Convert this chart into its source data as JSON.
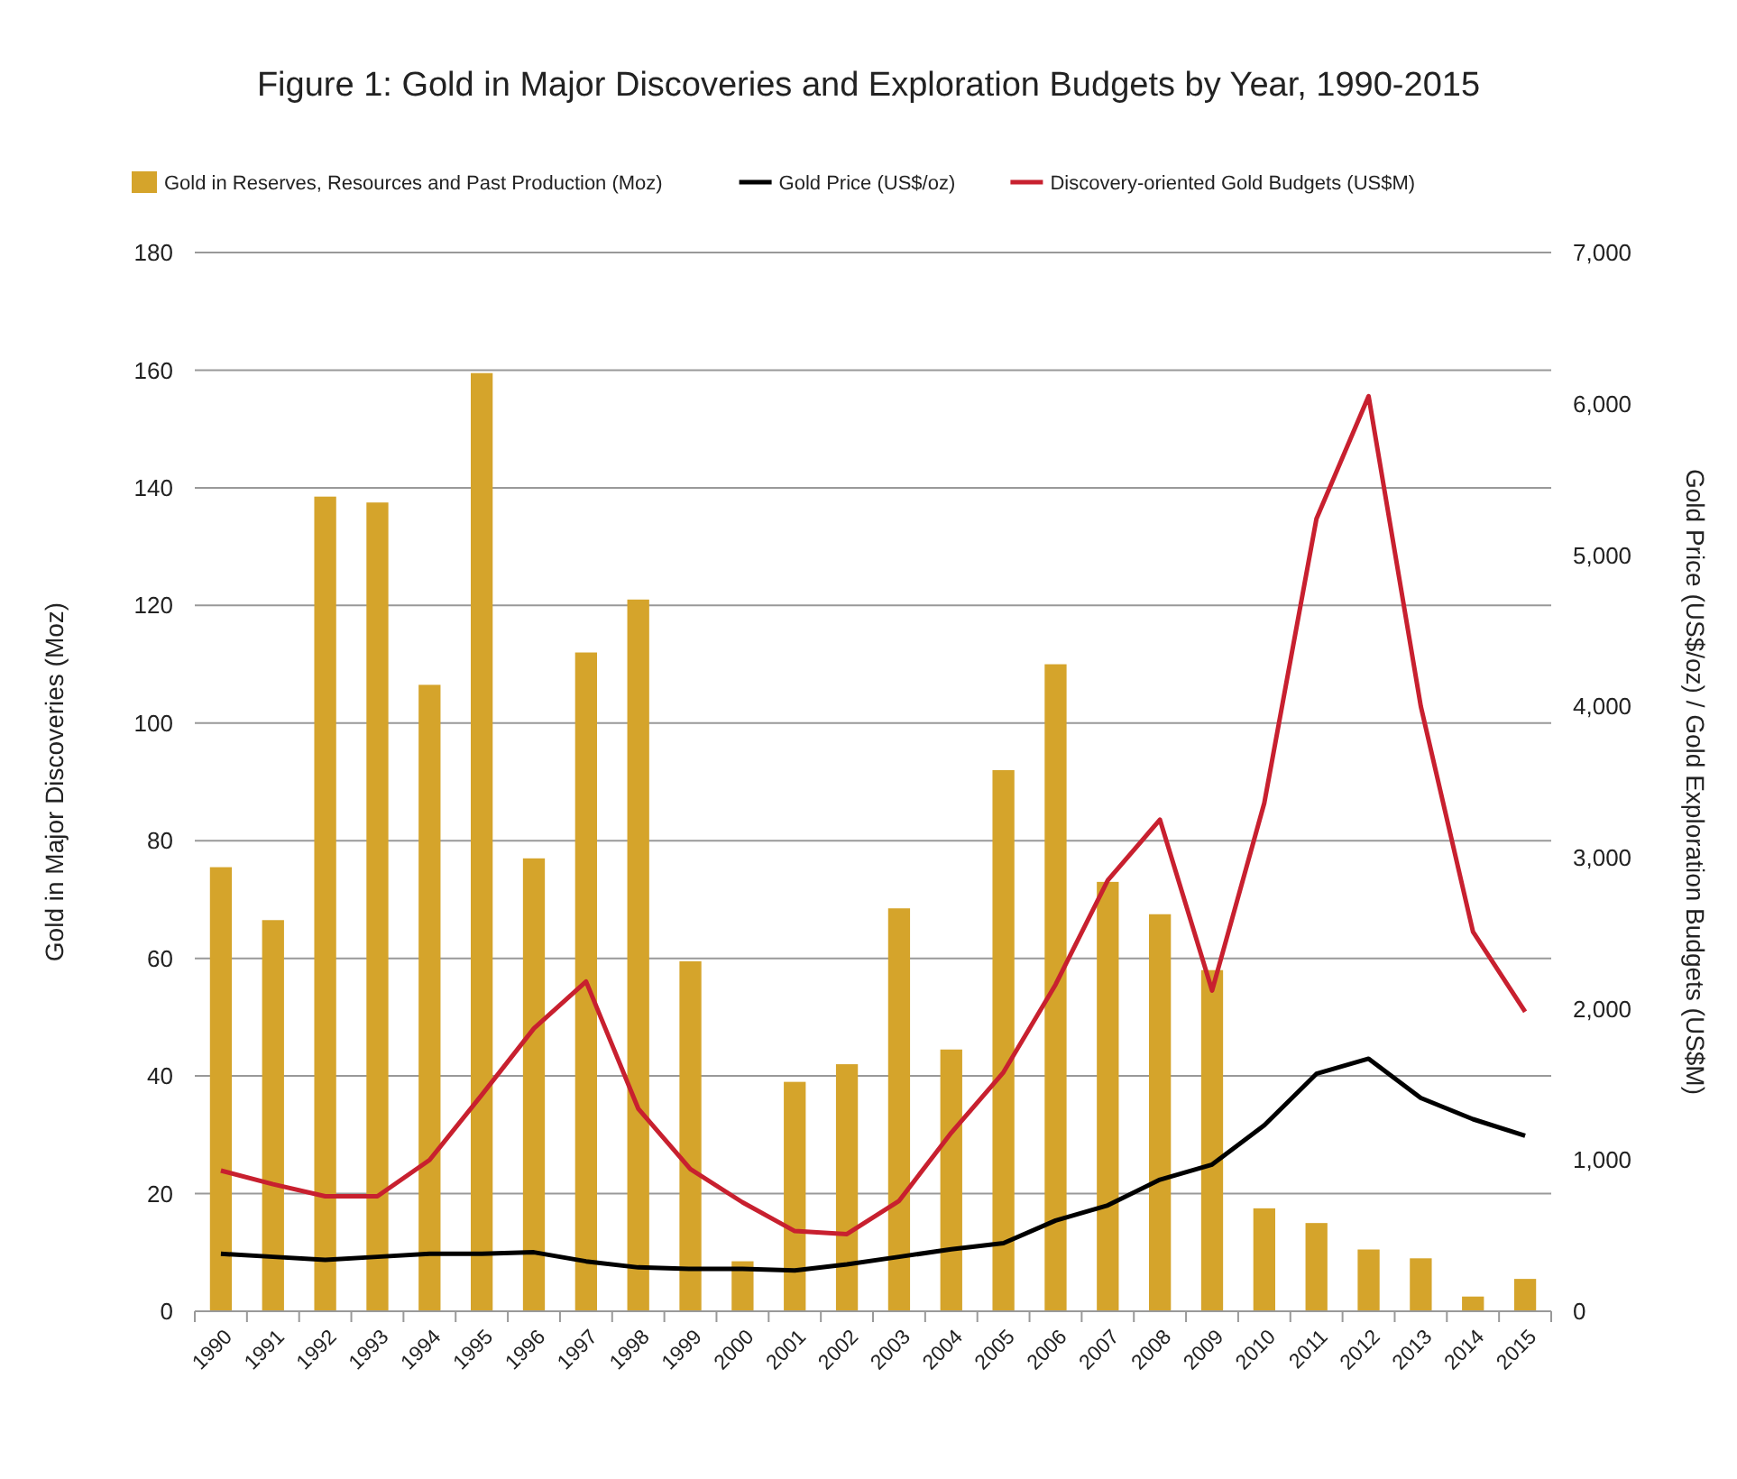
{
  "chart_data": {
    "type": "bar",
    "title": "Figure 1: Gold in Major Discoveries and Exploration Budgets by Year, 1990-2015",
    "ylabel": "Gold in Major Discoveries (Moz)",
    "y2label": "Gold Price (US$/oz) / Gold Exploration Budgets (US$M)",
    "categories": [
      "1990",
      "1991",
      "1992",
      "1993",
      "1994",
      "1995",
      "1996",
      "1997",
      "1998",
      "1999",
      "2000",
      "2001",
      "2002",
      "2003",
      "2004",
      "2005",
      "2006",
      "2007",
      "2008",
      "2009",
      "2010",
      "2011",
      "2012",
      "2013",
      "2014",
      "2015"
    ],
    "series": [
      {
        "name": "Gold in Reserves, Resources and Past Production (Moz)",
        "color": "#d5a42b",
        "values": [
          75.5,
          66.5,
          138.5,
          137.5,
          106.5,
          159.5,
          77,
          112,
          121,
          59.5,
          8.5,
          39,
          42,
          68.5,
          44.5,
          92,
          110,
          73,
          67.5,
          58,
          17.5,
          15,
          10.5,
          9,
          2.5,
          5.5
        ]
      },
      {
        "name": "Gold Price (US$/oz)",
        "type": "line",
        "axis": "y2",
        "color": "#000000",
        "values": [
          380,
          360,
          340,
          360,
          380,
          380,
          390,
          330,
          290,
          280,
          280,
          270,
          310,
          360,
          410,
          450,
          600,
          700,
          870,
          970,
          1230,
          1570,
          1670,
          1410,
          1270,
          1160
        ]
      },
      {
        "name": "Discovery-oriented Gold Budgets (US$M)",
        "type": "line",
        "axis": "y2",
        "color": "#c8202f",
        "values": [
          930,
          840,
          760,
          760,
          1000,
          1430,
          1870,
          2180,
          1340,
          940,
          720,
          530,
          510,
          730,
          1180,
          1580,
          2160,
          2850,
          3250,
          2120,
          3360,
          5240,
          6050,
          4000,
          2510,
          1980
        ]
      }
    ],
    "ylim": [
      0,
      180
    ],
    "yticks": [
      0,
      20,
      40,
      60,
      80,
      100,
      120,
      140,
      160,
      180
    ],
    "y2lim": [
      0,
      7000
    ],
    "y2ticks": [
      {
        "value": 0,
        "label": "0"
      },
      {
        "value": 1000,
        "label": "1,000"
      },
      {
        "value": 2000,
        "label": "2,000"
      },
      {
        "value": 3000,
        "label": "3,000"
      },
      {
        "value": 4000,
        "label": "4,000"
      },
      {
        "value": 5000,
        "label": "5,000"
      },
      {
        "value": 6000,
        "label": "6,000"
      },
      {
        "value": 7000,
        "label": "7,000"
      }
    ],
    "grid": "y",
    "legend": "top",
    "line_style": "solid",
    "marker": "none"
  }
}
